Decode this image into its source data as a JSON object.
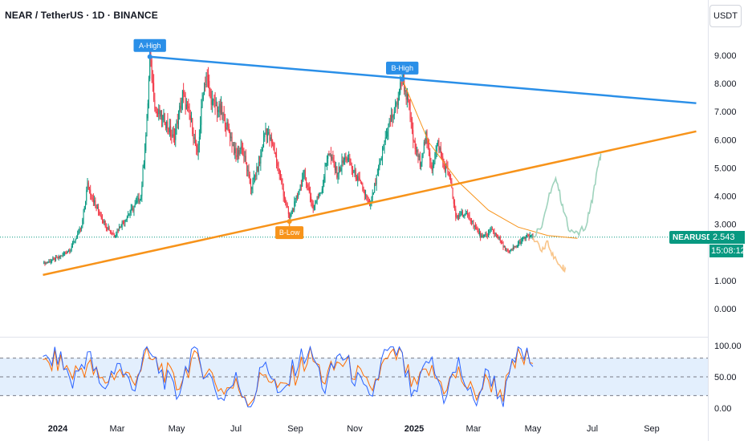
{
  "header": {
    "title": "NEAR / TetherUS · 1D · BINANCE",
    "currency_button": "USDT"
  },
  "price_tag": {
    "symbol": "NEARUSDT",
    "price": "2.543",
    "countdown": "15:08:12",
    "color": "#089981"
  },
  "colors": {
    "up": "#089981",
    "down": "#f23645",
    "resistance": "#2a8fe8",
    "support": "#f7931a",
    "projection_up": "#9fd3bd",
    "projection_down": "#f9c58a",
    "oscillator_k": "#2962ff",
    "oscillator_d": "#ff6d00",
    "oscillator_band": "#e3effd"
  },
  "chart_data": [
    {
      "type": "candlestick",
      "price_axis_labels": [
        "9.000",
        "8.000",
        "7.000",
        "6.000",
        "5.000",
        "4.000",
        "3.000",
        "2.000",
        "1.000",
        "0.000"
      ],
      "ylim": [
        0,
        9.5
      ],
      "x_tick_labels": [
        "2024",
        "Mar",
        "May",
        "Jul",
        "Sep",
        "Nov",
        "2025",
        "Mar",
        "May",
        "Jul",
        "Sep"
      ],
      "bold_x_ticks": [
        "2024",
        "2025"
      ],
      "x_tick_months": [
        0,
        2,
        4,
        6,
        8,
        10,
        12,
        14,
        16,
        18,
        20
      ],
      "close_path": [
        [
          -0.5,
          1.6
        ],
        [
          0.0,
          1.8
        ],
        [
          0.4,
          2.1
        ],
        [
          0.8,
          2.9
        ],
        [
          1.0,
          4.4
        ],
        [
          1.3,
          3.6
        ],
        [
          1.6,
          3.0
        ],
        [
          1.9,
          2.6
        ],
        [
          2.2,
          3.1
        ],
        [
          2.5,
          3.5
        ],
        [
          2.8,
          4.0
        ],
        [
          3.0,
          6.6
        ],
        [
          3.1,
          8.9
        ],
        [
          3.3,
          7.0
        ],
        [
          3.6,
          6.7
        ],
        [
          3.9,
          6.0
        ],
        [
          4.2,
          7.6
        ],
        [
          4.5,
          6.6
        ],
        [
          4.7,
          5.4
        ],
        [
          4.9,
          7.8
        ],
        [
          5.0,
          8.3
        ],
        [
          5.2,
          7.3
        ],
        [
          5.5,
          7.0
        ],
        [
          5.8,
          6.2
        ],
        [
          6.0,
          5.4
        ],
        [
          6.2,
          5.8
        ],
        [
          6.5,
          4.3
        ],
        [
          6.8,
          5.2
        ],
        [
          7.0,
          6.4
        ],
        [
          7.3,
          5.6
        ],
        [
          7.6,
          4.1
        ],
        [
          7.8,
          3.2
        ],
        [
          8.0,
          3.8
        ],
        [
          8.3,
          4.8
        ],
        [
          8.6,
          3.6
        ],
        [
          8.9,
          4.3
        ],
        [
          9.1,
          5.6
        ],
        [
          9.4,
          4.8
        ],
        [
          9.7,
          5.4
        ],
        [
          10.0,
          4.8
        ],
        [
          10.3,
          4.2
        ],
        [
          10.5,
          3.6
        ],
        [
          10.8,
          4.9
        ],
        [
          11.1,
          6.4
        ],
        [
          11.4,
          7.2
        ],
        [
          11.6,
          8.2
        ],
        [
          11.8,
          7.3
        ],
        [
          12.0,
          5.8
        ],
        [
          12.2,
          5.2
        ],
        [
          12.4,
          6.1
        ],
        [
          12.6,
          5.0
        ],
        [
          12.8,
          5.9
        ],
        [
          13.0,
          5.1
        ],
        [
          13.2,
          4.7
        ],
        [
          13.4,
          3.2
        ],
        [
          13.6,
          3.4
        ],
        [
          13.9,
          3.2
        ],
        [
          14.1,
          2.8
        ],
        [
          14.3,
          2.5
        ],
        [
          14.6,
          2.8
        ],
        [
          14.8,
          2.6
        ],
        [
          15.0,
          2.2
        ],
        [
          15.2,
          2.0
        ],
        [
          15.4,
          2.2
        ],
        [
          15.7,
          2.5
        ],
        [
          15.9,
          2.6
        ],
        [
          16.0,
          2.55
        ]
      ],
      "annotations": [
        {
          "label": "A-High",
          "date_month": 3.1,
          "price": 8.95,
          "color": "#2a8fe8",
          "place": "above"
        },
        {
          "label": "B-High",
          "date_month": 11.6,
          "price": 8.15,
          "color": "#2a8fe8",
          "place": "above"
        },
        {
          "label": "B-Low",
          "date_month": 7.8,
          "price": 3.1,
          "color": "#f7931a",
          "place": "below"
        }
      ],
      "trendlines": [
        {
          "name": "resistance",
          "from": [
            3.1,
            8.95
          ],
          "to": [
            21.5,
            7.3
          ]
        },
        {
          "name": "support",
          "from": [
            -0.5,
            1.2
          ],
          "to": [
            21.5,
            6.3
          ]
        }
      ],
      "current_price": 2.543,
      "projection_up": [
        [
          16.0,
          2.55
        ],
        [
          16.3,
          3.0
        ],
        [
          16.6,
          4.2
        ],
        [
          16.8,
          4.6
        ],
        [
          17.0,
          3.6
        ],
        [
          17.2,
          2.9
        ],
        [
          17.5,
          2.6
        ],
        [
          17.8,
          3.0
        ],
        [
          18.0,
          3.9
        ],
        [
          18.2,
          5.1
        ],
        [
          18.3,
          5.5
        ]
      ],
      "projection_down": [
        [
          16.0,
          2.55
        ],
        [
          16.3,
          2.0
        ],
        [
          16.5,
          2.4
        ],
        [
          16.7,
          1.8
        ],
        [
          17.0,
          1.5
        ],
        [
          17.1,
          1.4
        ]
      ],
      "decay_curve": [
        [
          11.6,
          8.15
        ],
        [
          12.5,
          5.9
        ],
        [
          13.5,
          4.5
        ],
        [
          14.5,
          3.5
        ],
        [
          15.5,
          2.9
        ],
        [
          16.5,
          2.6
        ],
        [
          17.5,
          2.5
        ]
      ]
    },
    {
      "type": "line",
      "axis_labels": [
        "100.00",
        "50.00",
        "0.00"
      ],
      "ylim": [
        0,
        100
      ],
      "band": [
        20,
        80
      ],
      "k_path": [
        [
          -0.5,
          70
        ],
        [
          0.0,
          85
        ],
        [
          0.5,
          40
        ],
        [
          1.0,
          90
        ],
        [
          1.5,
          25
        ],
        [
          2.0,
          75
        ],
        [
          2.5,
          30
        ],
        [
          3.0,
          95
        ],
        [
          3.5,
          55
        ],
        [
          4.0,
          20
        ],
        [
          4.5,
          90
        ],
        [
          5.0,
          60
        ],
        [
          5.5,
          15
        ],
        [
          6.0,
          45
        ],
        [
          6.5,
          5
        ],
        [
          7.0,
          80
        ],
        [
          7.5,
          10
        ],
        [
          8.0,
          70
        ],
        [
          8.5,
          95
        ],
        [
          9.0,
          30
        ],
        [
          9.5,
          90
        ],
        [
          10.0,
          50
        ],
        [
          10.5,
          10
        ],
        [
          11.0,
          85
        ],
        [
          11.5,
          90
        ],
        [
          12.0,
          10
        ],
        [
          12.5,
          80
        ],
        [
          13.0,
          20
        ],
        [
          13.5,
          70
        ],
        [
          14.0,
          5
        ],
        [
          14.5,
          60
        ],
        [
          15.0,
          10
        ],
        [
          15.5,
          95
        ],
        [
          16.0,
          70
        ]
      ],
      "d_path": [
        [
          -0.5,
          65
        ],
        [
          0.0,
          75
        ],
        [
          0.5,
          55
        ],
        [
          1.0,
          70
        ],
        [
          1.5,
          40
        ],
        [
          2.0,
          60
        ],
        [
          2.5,
          45
        ],
        [
          3.0,
          80
        ],
        [
          3.5,
          65
        ],
        [
          4.0,
          35
        ],
        [
          4.5,
          75
        ],
        [
          5.0,
          65
        ],
        [
          5.5,
          30
        ],
        [
          6.0,
          35
        ],
        [
          6.5,
          15
        ],
        [
          7.0,
          60
        ],
        [
          7.5,
          25
        ],
        [
          8.0,
          55
        ],
        [
          8.5,
          85
        ],
        [
          9.0,
          45
        ],
        [
          9.5,
          75
        ],
        [
          10.0,
          60
        ],
        [
          10.5,
          25
        ],
        [
          11.0,
          70
        ],
        [
          11.5,
          85
        ],
        [
          12.0,
          30
        ],
        [
          12.5,
          60
        ],
        [
          13.0,
          35
        ],
        [
          13.5,
          55
        ],
        [
          14.0,
          20
        ],
        [
          14.5,
          45
        ],
        [
          15.0,
          25
        ],
        [
          15.5,
          80
        ],
        [
          16.0,
          75
        ]
      ]
    }
  ]
}
